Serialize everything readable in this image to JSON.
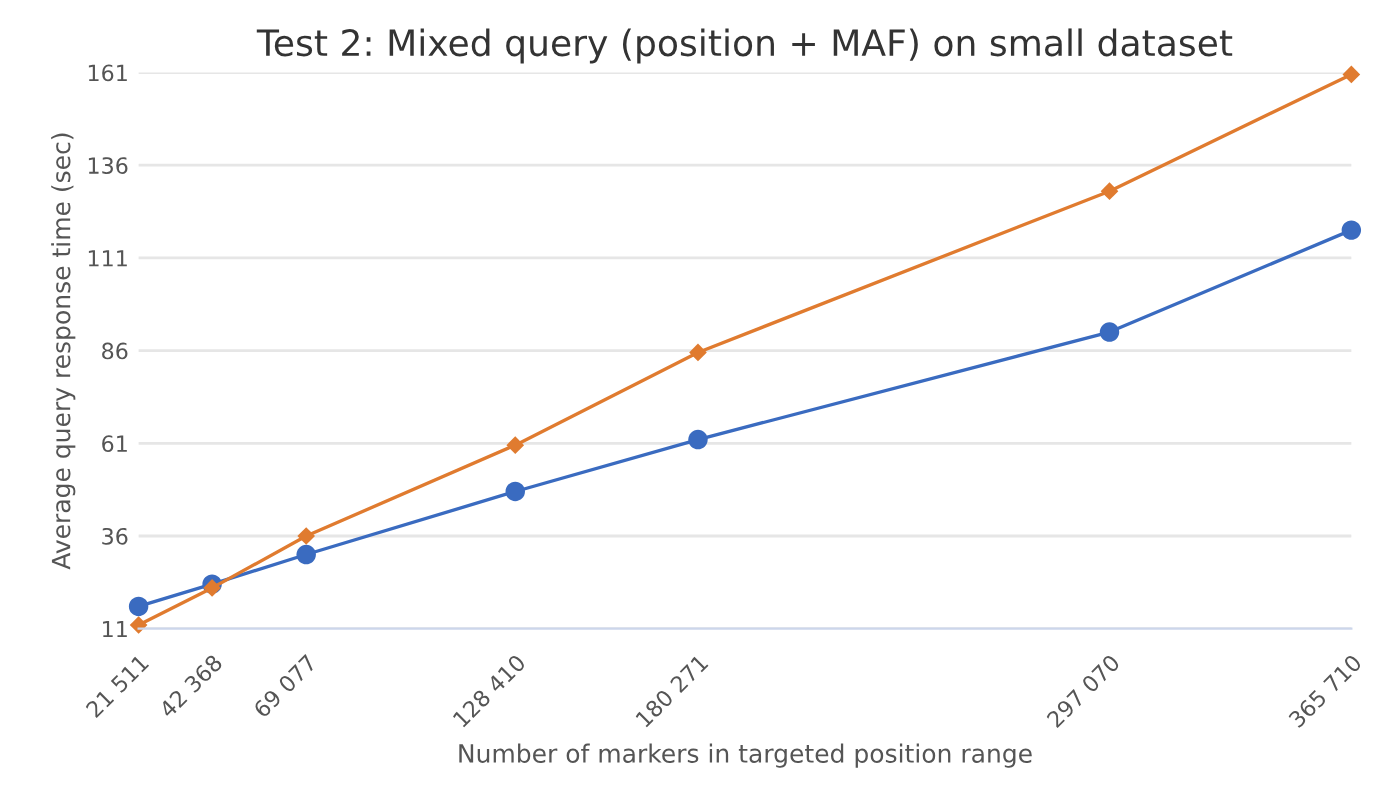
{
  "chart_data": {
    "type": "line",
    "title": "Test 2: Mixed query (position + MAF) on small dataset",
    "xlabel": "Number of markers in targeted position range",
    "ylabel": "Average query response time (sec)",
    "x": [
      21511,
      42368,
      69077,
      128410,
      180271,
      297070,
      365710
    ],
    "series": [
      {
        "color": "#3a6bc0",
        "marker": "circle",
        "values": [
          17,
          23,
          31,
          48,
          62,
          91,
          118.5
        ]
      },
      {
        "color": "#e07b2f",
        "marker": "diamond",
        "values": [
          12,
          22,
          36,
          60.5,
          85.5,
          129,
          160.5
        ]
      }
    ],
    "xlim": [
      21511,
      365710
    ],
    "xticks": [
      {
        "value": 21511,
        "label": "21 511"
      },
      {
        "value": 42368,
        "label": "42 368"
      },
      {
        "value": 69077,
        "label": "69 077"
      },
      {
        "value": 128410,
        "label": "128 410"
      },
      {
        "value": 180271,
        "label": "180 271"
      },
      {
        "value": 297070,
        "label": "297 070"
      },
      {
        "value": 365710,
        "label": "365 710"
      }
    ],
    "ylim": [
      11,
      161
    ],
    "yticks": [
      11,
      36,
      61,
      86,
      111,
      136,
      161
    ],
    "grid": "y",
    "line_style": "solid"
  }
}
